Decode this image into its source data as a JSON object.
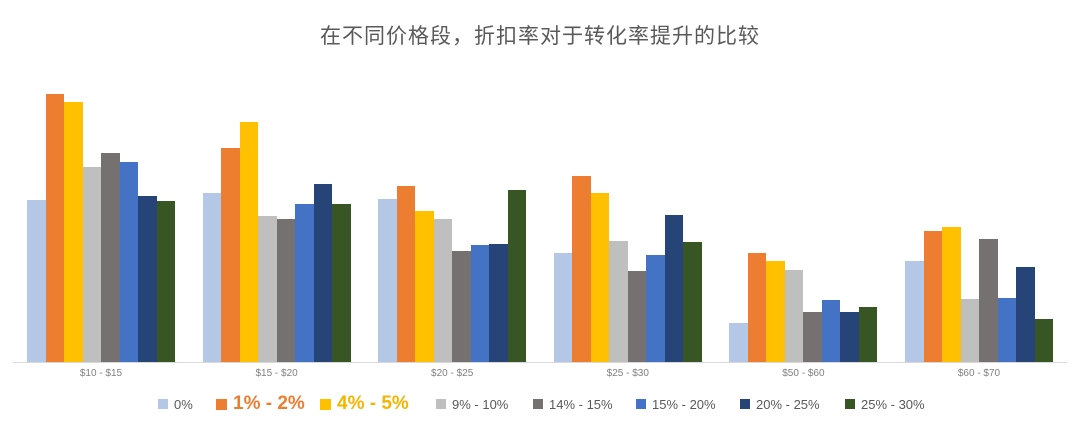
{
  "chart_data": {
    "type": "bar",
    "title": "在不同价格段，折扣率对于转化率提升的比较",
    "xlabel": "",
    "ylabel": "",
    "y_axis_visible": false,
    "grid": false,
    "legend_position": "bottom",
    "categories": [
      "$10 - $15",
      "$15 - $20",
      "$20 - $25",
      "$25 - $30",
      "$50 - $60",
      "$60 - $70"
    ],
    "series": [
      {
        "name": "0%",
        "color": "#B4C7E7",
        "values": [
          162,
          169,
          163,
          109,
          39,
          101
        ]
      },
      {
        "name": "1% - 2%",
        "color": "#ED7D31",
        "values": [
          268,
          214,
          176,
          186,
          109,
          131
        ]
      },
      {
        "name": "4% - 5%",
        "color": "#FFC000",
        "values": [
          260,
          240,
          151,
          169,
          101,
          135
        ]
      },
      {
        "name": "9% - 10%",
        "color": "#BFBFBF",
        "values": [
          195,
          146,
          143,
          121,
          92,
          63
        ]
      },
      {
        "name": "14% - 15%",
        "color": "#767171",
        "values": [
          209,
          143,
          111,
          91,
          50,
          123
        ]
      },
      {
        "name": "15% - 20%",
        "color": "#4472C4",
        "values": [
          200,
          158,
          117,
          107,
          62,
          64
        ]
      },
      {
        "name": "20% - 25%",
        "color": "#264478",
        "values": [
          166,
          178,
          118,
          147,
          50,
          95
        ]
      },
      {
        "name": "25% - 30%",
        "color": "#375623",
        "values": [
          161,
          158,
          172,
          120,
          55,
          43
        ]
      }
    ],
    "ylim": [
      0,
      280
    ],
    "value_units": "relative (no y-axis shown; values are estimated bar heights)"
  },
  "legend": {
    "items": [
      {
        "label": "0%",
        "emphasized": false
      },
      {
        "label": "1% - 2%",
        "emphasized": true,
        "label_color": "#ED7D31"
      },
      {
        "label": "4% - 5%",
        "emphasized": true,
        "label_color": "#F4B400"
      },
      {
        "label": "9% - 10%",
        "emphasized": false
      },
      {
        "label": "14% - 15%",
        "emphasized": false
      },
      {
        "label": "15% - 20%",
        "emphasized": false
      },
      {
        "label": "20% - 25%",
        "emphasized": false
      },
      {
        "label": "25% - 30%",
        "emphasized": false
      }
    ]
  }
}
